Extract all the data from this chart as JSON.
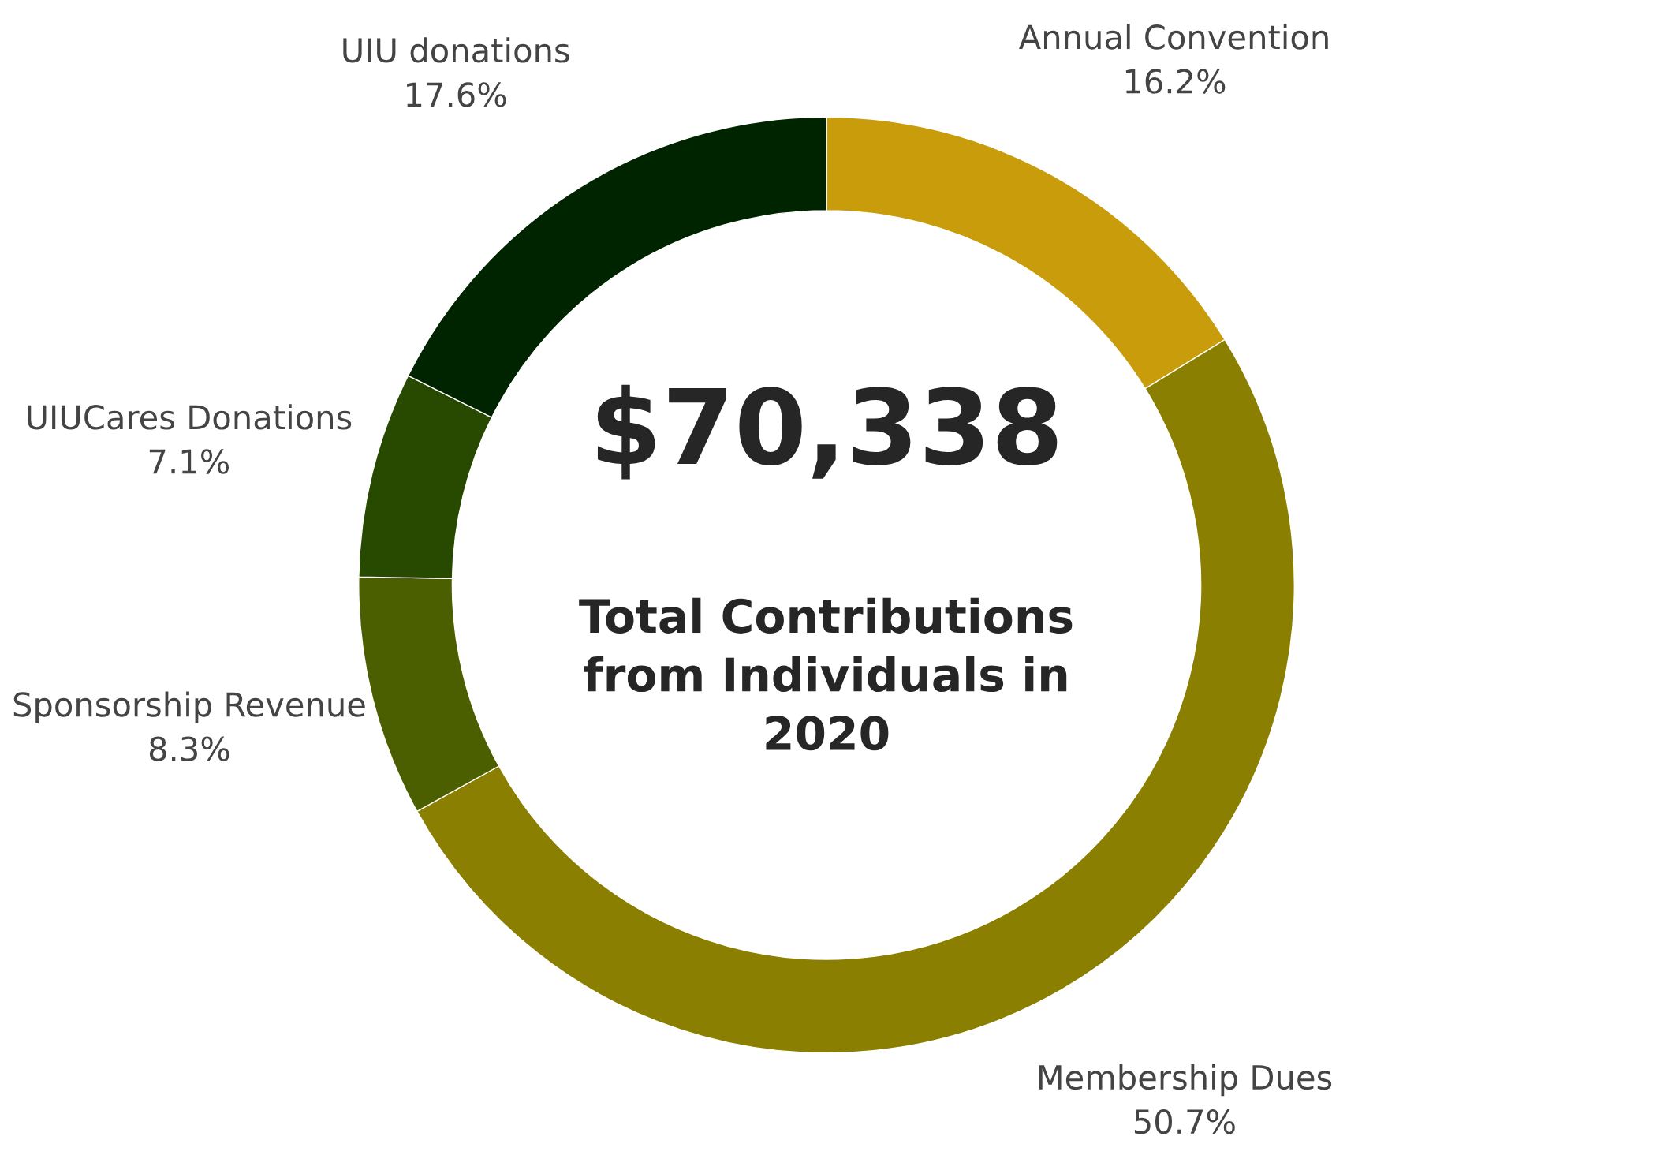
{
  "chart_data": {
    "type": "donut",
    "categories": [
      "Annual Convention",
      "Membership Dues",
      "Sponsorship Revenue",
      "UIUCares Donations",
      "UIU donations"
    ],
    "values": [
      16.2,
      50.7,
      8.3,
      7.1,
      17.6
    ],
    "colors": [
      "#c99c0c",
      "#8a7f00",
      "#4c5f00",
      "#274a00",
      "#002400"
    ],
    "value_labels": [
      "16.2%",
      "50.7%",
      "8.3%",
      "7.1%",
      "17.6%"
    ],
    "legend": false,
    "annotations": [
      "$70,338",
      "Total Contributions\nfrom Individuals in\n2020"
    ]
  }
}
